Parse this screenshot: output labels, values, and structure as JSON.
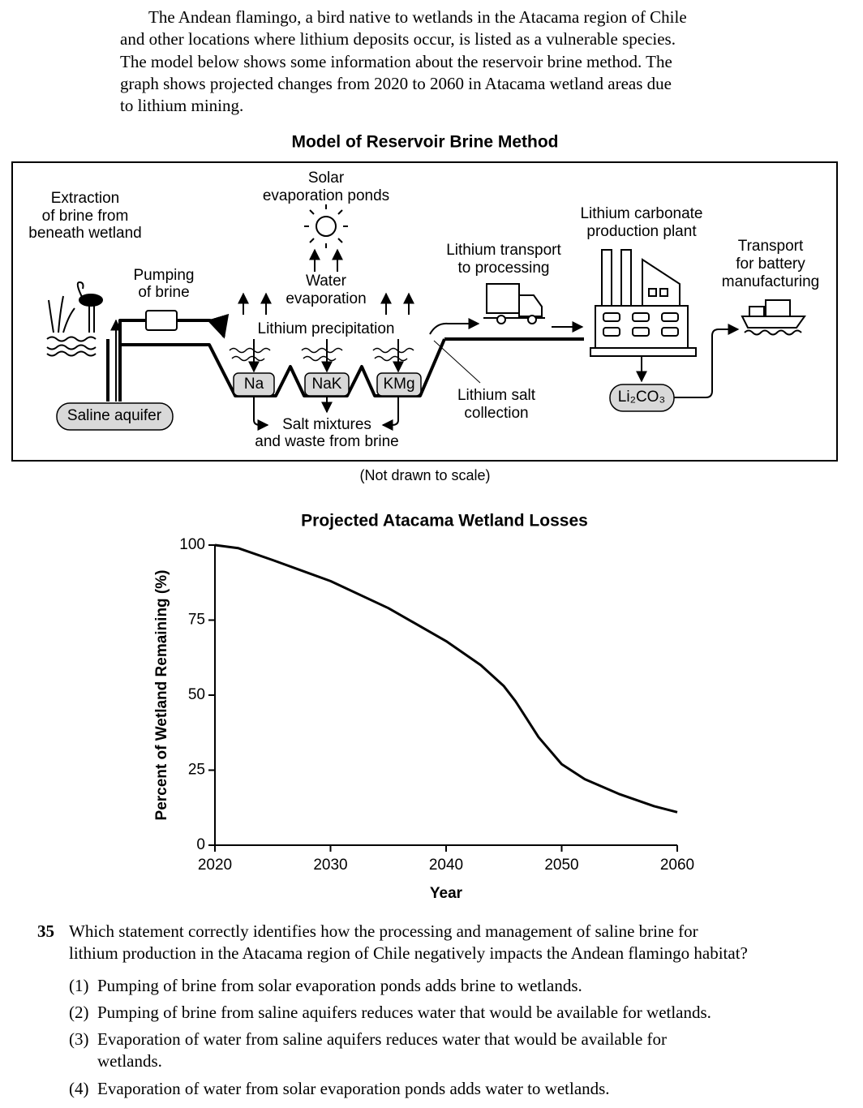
{
  "passage": {
    "lines": [
      "The Andean flamingo, a bird native to wetlands in the Atacama region of Chile",
      "and other locations where lithium deposits occur, is listed as a vulnerable species.",
      "The model below shows some information about the reservoir brine method. The",
      "graph shows projected changes from 2020 to 2060 in Atacama wetland areas due",
      "to lithium mining."
    ]
  },
  "diagram": {
    "title": "Model of Reservoir Brine Method",
    "extraction": [
      "Extraction",
      "of brine from",
      "beneath wetland"
    ],
    "solar_ponds": [
      "Solar",
      "evaporation ponds"
    ],
    "pumping": [
      "Pumping",
      "of brine"
    ],
    "water_evaporation": [
      "Water",
      "evaporation"
    ],
    "precipitation": "Lithium precipitation",
    "salts": [
      "Na",
      "NaK",
      "KMg"
    ],
    "salt_mixtures": [
      "Salt mixtures",
      "and waste from brine"
    ],
    "aquifer": "Saline aquifer",
    "transport": [
      "Lithium transport",
      "to processing"
    ],
    "salt_collection": [
      "Lithium salt",
      "collection"
    ],
    "plant": [
      "Lithium carbonate",
      "production plant"
    ],
    "product": "Li₂CO₃",
    "battery": [
      "Transport",
      "for battery",
      "manufacturing"
    ],
    "note": "(Not drawn to scale)"
  },
  "chart_data": {
    "type": "line",
    "title": "Projected Atacama Wetland Losses",
    "x_label": "Year",
    "y_label": "Percent of Wetland Remaining (%)",
    "x": [
      2020,
      2022,
      2025,
      2030,
      2035,
      2040,
      2043,
      2045,
      2046,
      2047,
      2048,
      2050,
      2052,
      2055,
      2058,
      2060
    ],
    "values": [
      100,
      99,
      95,
      88,
      79,
      68,
      60,
      53,
      48,
      42,
      36,
      27,
      22,
      17,
      13,
      11
    ],
    "color": "#000000",
    "xlim": [
      2020,
      2060
    ],
    "xticks": [
      2020,
      2030,
      2040,
      2050,
      2060
    ],
    "ylim": [
      0,
      100
    ],
    "yticks": [
      0,
      25,
      50,
      75,
      100
    ],
    "grid": false
  },
  "question": {
    "number": "35",
    "lines": [
      "Which statement correctly identifies how the processing and management of saline brine for",
      "lithium production in the Atacama region of Chile negatively impacts the Andean flamingo habitat?"
    ],
    "options": [
      {
        "number": "(1)",
        "lines": [
          "Pumping of brine from solar evaporation ponds adds brine to wetlands."
        ]
      },
      {
        "number": "(2)",
        "lines": [
          "Pumping of brine from saline aquifers reduces water that would be available for wetlands."
        ]
      },
      {
        "number": "(3)",
        "lines": [
          "Evaporation of water from saline aquifers reduces water that would be available for",
          "wetlands."
        ]
      },
      {
        "number": "(4)",
        "lines": [
          "Evaporation of water from solar evaporation ponds adds water to wetlands."
        ]
      }
    ]
  }
}
